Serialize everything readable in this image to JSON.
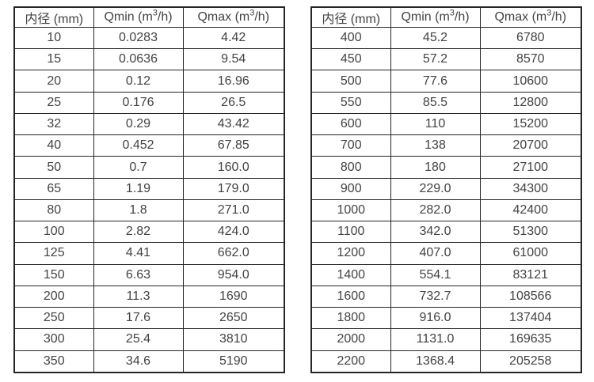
{
  "page": {
    "background_color": "#ffffff",
    "border_color": "#262626",
    "text_color": "#434343"
  },
  "chart_data": [
    {
      "type": "table",
      "name": "flow-rate-table-small-diameters",
      "columns": [
        {
          "label": "内径 (mm)"
        },
        {
          "pre": "Qmin (m",
          "sup": "3",
          "post": "/h)"
        },
        {
          "pre": "Qmax (m",
          "sup": "3",
          "post": "/h)"
        }
      ],
      "rows": [
        [
          "10",
          "0.0283",
          "4.42"
        ],
        [
          "15",
          "0.0636",
          "9.54"
        ],
        [
          "20",
          "0.12",
          "16.96"
        ],
        [
          "25",
          "0.176",
          "26.5"
        ],
        [
          "32",
          "0.29",
          "43.42"
        ],
        [
          "40",
          "0.452",
          "67.85"
        ],
        [
          "50",
          "0.7",
          "160.0"
        ],
        [
          "65",
          "1.19",
          "179.0"
        ],
        [
          "80",
          "1.8",
          "271.0"
        ],
        [
          "100",
          "2.82",
          "424.0"
        ],
        [
          "125",
          "4.41",
          "662.0"
        ],
        [
          "150",
          "6.63",
          "954.0"
        ],
        [
          "200",
          "11.3",
          "1690"
        ],
        [
          "250",
          "17.6",
          "2650"
        ],
        [
          "300",
          "25.4",
          "3810"
        ],
        [
          "350",
          "34.6",
          "5190"
        ]
      ]
    },
    {
      "type": "table",
      "name": "flow-rate-table-large-diameters",
      "columns": [
        {
          "label": "内径 (mm)"
        },
        {
          "pre": "Qmin (m",
          "sup": "3",
          "post": "/h)"
        },
        {
          "pre": "Qmax (m",
          "sup": "3",
          "post": "/h)"
        }
      ],
      "rows": [
        [
          "400",
          "45.2",
          "6780"
        ],
        [
          "450",
          "57.2",
          "8570"
        ],
        [
          "500",
          "77.6",
          "10600"
        ],
        [
          "550",
          "85.5",
          "12800"
        ],
        [
          "600",
          "110",
          "15200"
        ],
        [
          "700",
          "138",
          "20700"
        ],
        [
          "800",
          "180",
          "27100"
        ],
        [
          "900",
          "229.0",
          "34300"
        ],
        [
          "1000",
          "282.0",
          "42400"
        ],
        [
          "1100",
          "342.0",
          "51300"
        ],
        [
          "1200",
          "407.0",
          "61000"
        ],
        [
          "1400",
          "554.1",
          "83121"
        ],
        [
          "1600",
          "732.7",
          "108566"
        ],
        [
          "1800",
          "916.0",
          "137404"
        ],
        [
          "2000",
          "1131.0",
          "169635"
        ],
        [
          "2200",
          "1368.4",
          "205258"
        ]
      ]
    }
  ]
}
